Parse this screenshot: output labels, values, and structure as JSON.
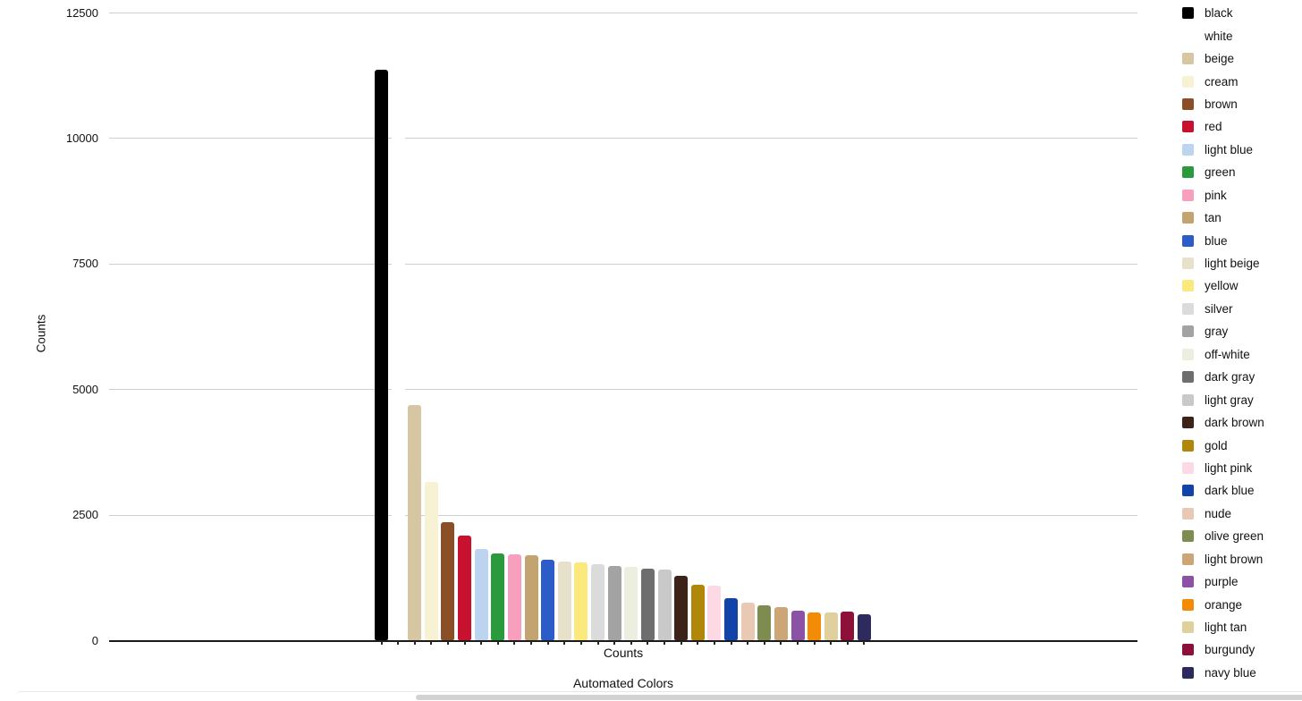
{
  "chart_data": {
    "type": "bar",
    "title": "Automated Colors",
    "xlabel": "Counts",
    "ylabel": "Counts",
    "ylim": [
      0,
      12500
    ],
    "yticks": [
      0,
      2500,
      5000,
      7500,
      10000,
      12500
    ],
    "grid": "horizontal",
    "legend_position": "right",
    "categories": [
      "black",
      "white",
      "beige",
      "cream",
      "brown",
      "red",
      "light blue",
      "green",
      "pink",
      "tan",
      "blue",
      "light beige",
      "yellow",
      "silver",
      "gray",
      "off-white",
      "dark gray",
      "light gray",
      "dark brown",
      "gold",
      "light pink",
      "dark blue",
      "nude",
      "olive green",
      "light brown",
      "purple",
      "orange",
      "light tan",
      "burgundy",
      "navy blue"
    ],
    "bars": [
      {
        "label": "black",
        "color": "#000000",
        "value": 11360
      },
      {
        "label": "white",
        "color": "#ffffff",
        "value": 10600
      },
      {
        "label": "beige",
        "color": "#d6c6a1",
        "value": 4690
      },
      {
        "label": "cream",
        "color": "#f7f2d3",
        "value": 3160
      },
      {
        "label": "brown",
        "color": "#8a4f26",
        "value": 2350
      },
      {
        "label": "red",
        "color": "#c8102f",
        "value": 2080
      },
      {
        "label": "light blue",
        "color": "#bdd4f1",
        "value": 1820
      },
      {
        "label": "green",
        "color": "#2a9a3d",
        "value": 1730
      },
      {
        "label": "pink",
        "color": "#f99fbe",
        "value": 1710
      },
      {
        "label": "tan",
        "color": "#c3a471",
        "value": 1690
      },
      {
        "label": "blue",
        "color": "#2b5cc8",
        "value": 1600
      },
      {
        "label": "light beige",
        "color": "#e7e0cb",
        "value": 1575
      },
      {
        "label": "yellow",
        "color": "#fce97e",
        "value": 1550
      },
      {
        "label": "silver",
        "color": "#dbdbdb",
        "value": 1510
      },
      {
        "label": "gray",
        "color": "#a3a3a3",
        "value": 1485
      },
      {
        "label": "off-white",
        "color": "#ecefe0",
        "value": 1460
      },
      {
        "label": "dark gray",
        "color": "#6e6e6e",
        "value": 1425
      },
      {
        "label": "light gray",
        "color": "#c9c9c9",
        "value": 1400
      },
      {
        "label": "dark brown",
        "color": "#3d2317",
        "value": 1280
      },
      {
        "label": "gold",
        "color": "#b1870b",
        "value": 1110
      },
      {
        "label": "light pink",
        "color": "#fcd9e4",
        "value": 1090
      },
      {
        "label": "dark blue",
        "color": "#1243a8",
        "value": 840
      },
      {
        "label": "nude",
        "color": "#eac9b4",
        "value": 750
      },
      {
        "label": "olive green",
        "color": "#7e8d4f",
        "value": 690
      },
      {
        "label": "light brown",
        "color": "#cda678",
        "value": 665
      },
      {
        "label": "purple",
        "color": "#8b52a5",
        "value": 595
      },
      {
        "label": "orange",
        "color": "#f28b05",
        "value": 558
      },
      {
        "label": "light tan",
        "color": "#dfd09e",
        "value": 552
      },
      {
        "label": "burgundy",
        "color": "#8d1038",
        "value": 562
      },
      {
        "label": "navy blue",
        "color": "#2d2a5e",
        "value": 515
      }
    ],
    "axis_colors": {
      "gridline": "#cfcfcf",
      "axis_line": "#1a1a1a",
      "text": "#111111"
    }
  },
  "ui": {
    "horizontal_scrollbar": {
      "present": true,
      "thumb_color": "#d2d2d2"
    }
  }
}
